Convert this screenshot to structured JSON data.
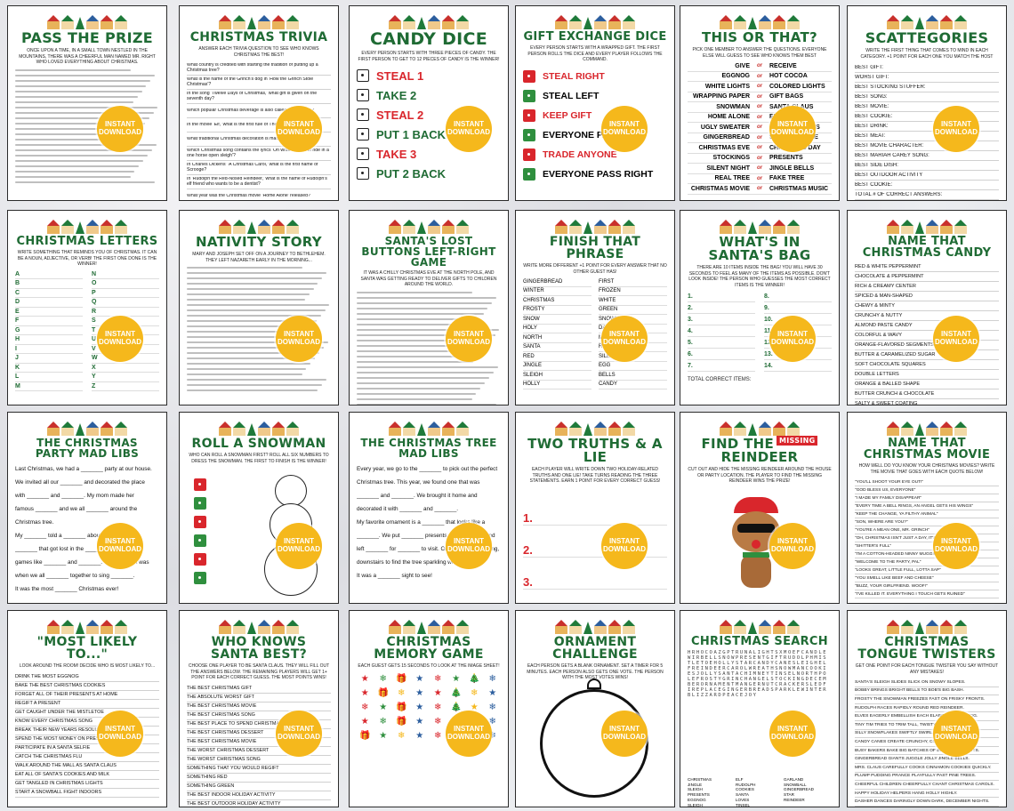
{
  "badge": {
    "line1": "INSTANT",
    "line2": "DOWNLOAD",
    "color": "#f5b81c"
  },
  "colors": {
    "title_green": "#1f6b34",
    "accent_red": "#d9262c"
  },
  "cards": [
    {
      "id": "pass-the-prize",
      "title": "PASS THE PRIZE",
      "subtitle": "Once upon a time, in a small town nestled in the mountains, there was a cheerful man named Mr. Right who loved everything about Christmas."
    },
    {
      "id": "christmas-trivia",
      "title": "CHRISTMAS TRIVIA",
      "subtitle": "ANSWER EACH TRIVIA QUESTION TO SEE WHO KNOWS CHRISTMAS THE BEST!",
      "items": [
        "What country is credited with starting the tradition of putting up a Christmas tree?",
        "What is the name of the Grinch's dog in 'How the Grinch Stole Christmas'?",
        "In the song 'Twelve Days of Christmas,' what gift is given on the seventh day?",
        "Which popular Christmas beverage is also called 'milk punch'?",
        "In the movie 'Elf,' what is the first rule of The Code of Elves?",
        "What traditional Christmas decoration is made by hanging...",
        "Which Christmas song contains the lyrics 'Oh what fun it is to ride in a one horse open sleigh'?",
        "In Charles Dickens' 'A Christmas Carol,' what is the first name of Scrooge?",
        "In 'Rudolph the Red-Nosed Reindeer,' what is the name of Rudolph's elf friend who wants to be a dentist?",
        "What year was the Christmas movie 'Home Alone' released?"
      ]
    },
    {
      "id": "candy-dice",
      "title": "CANDY DICE",
      "subtitle": "EVERY PERSON STARTS WITH THREE PIECES OF CANDY. THE FIRST PERSON TO GET TO 12 PIECES OF CANDY IS THE WINNER!",
      "rows": [
        {
          "label": "STEAL 1",
          "red": true
        },
        {
          "label": "TAKE 2",
          "red": false
        },
        {
          "label": "STEAL 2",
          "red": true
        },
        {
          "label": "PUT 1 BACK",
          "red": false
        },
        {
          "label": "TAKE 3",
          "red": true
        },
        {
          "label": "PUT 2 BACK",
          "red": false
        }
      ]
    },
    {
      "id": "gift-exchange-dice",
      "title": "GIFT EXCHANGE DICE",
      "subtitle": "EVERY PERSON STARTS WITH A WRAPPED GIFT. THE FIRST PERSON ROLLS THE DICE AND EVERY PLAYER FOLLOWS THE COMMAND.",
      "rows": [
        {
          "label": "STEAL RIGHT",
          "red": true
        },
        {
          "label": "STEAL LEFT",
          "red": false
        },
        {
          "label": "KEEP GIFT",
          "red": true
        },
        {
          "label": "EVERYONE PASS LEFT",
          "red": false
        },
        {
          "label": "TRADE ANYONE",
          "red": true
        },
        {
          "label": "EVERYONE PASS RIGHT",
          "red": false
        }
      ]
    },
    {
      "id": "this-or-that",
      "title": "THIS OR THAT?",
      "subtitle": "PICK ONE MEMBER TO ANSWER THE QUESTIONS. EVERYONE ELSE WILL GUESS TO SEE WHO KNOWS THEM BEST",
      "or": "or",
      "pairs": [
        [
          "GIVE",
          "RECEIVE"
        ],
        [
          "EGGNOG",
          "HOT COCOA"
        ],
        [
          "WHITE LIGHTS",
          "COLORED LIGHTS"
        ],
        [
          "WRAPPING PAPER",
          "GIFT BAGS"
        ],
        [
          "SNOWMAN",
          "SANTA CLAUS"
        ],
        [
          "HOME ALONE",
          "ELF"
        ],
        [
          "UGLY SWEATER",
          "CHRISTMAS PJS"
        ],
        [
          "GINGERBREAD",
          "SUGAR COOKIE"
        ],
        [
          "CHRISTMAS EVE",
          "CHRISTMAS DAY"
        ],
        [
          "STOCKINGS",
          "PRESENTS"
        ],
        [
          "SILENT NIGHT",
          "JINGLE BELLS"
        ],
        [
          "REAL TREE",
          "FAKE TREE"
        ],
        [
          "CHRISTMAS MOVIE",
          "CHRISTMAS MUSIC"
        ]
      ]
    },
    {
      "id": "scattegories",
      "title": "SCATTEGORIES",
      "subtitle": "WRITE THE FIRST THING THAT COMES TO MIND IN EACH CATEGORY. +1 POINT FOR EACH ONE YOU MATCH THE HOST",
      "items": [
        "BEST GIFT:",
        "WORST GIFT:",
        "BEST STOCKING STUFFER:",
        "BEST SONG:",
        "BEST MOVIE:",
        "BEST COOKIE:",
        "BEST DRINK:",
        "BEST MEAT:",
        "BEST MOVIE CHARACTER:",
        "BEST MARIAH CAREY SONG:",
        "BEST SIDE DISH:",
        "BEST OUTDOOR ACTIVITY",
        "BEST COOKIE:",
        "TOTAL # OF CORRECT ANSWERS:"
      ]
    },
    {
      "id": "christmas-letters",
      "title": "CHRISTMAS LETTERS",
      "subtitle": "WRITE SOMETHING THAT REMINDS YOU OF CHRISTMAS. IT CAN BE A NOUN, ADJECTIVE, OR VERB! THE FIRST ONE DONE IS THE WINNER!",
      "letters": [
        "A",
        "B",
        "C",
        "D",
        "E",
        "F",
        "G",
        "H",
        "I",
        "J",
        "K",
        "L",
        "M"
      ],
      "letters2": [
        "N",
        "O",
        "P",
        "Q",
        "R",
        "S",
        "T",
        "U",
        "V",
        "W",
        "X",
        "Y",
        "Z"
      ]
    },
    {
      "id": "nativity-story",
      "title": "NATIVITY STORY",
      "subtitle": "Mary and Joseph set off on a journey to Bethlehem. They LEFT Nazareth early in the morning..."
    },
    {
      "id": "santas-lost-buttons",
      "title": "SANTA'S LOST BUTTONS LEFT-RIGHT GAME",
      "subtitle": "It was a chilly Christmas Eve at the North Pole, and Santa was getting READY to deliver gifts to children around the world."
    },
    {
      "id": "finish-that-phrase",
      "title": "FINISH THAT PHRASE",
      "subtitle": "WRITE MORE DIFFERENT +1 POINT FOR EVERY ANSWER THAT NO OTHER GUEST HAS!",
      "left": [
        "GINGERBREAD",
        "WINTER",
        "CHRISTMAS",
        "FROSTY",
        "SNOW",
        "HOLY",
        "NORTH",
        "SANTA",
        "RED",
        "JINGLE",
        "SLEIGH",
        "HOLLY"
      ],
      "right": [
        "FIRST",
        "FROZEN",
        "WHITE",
        "GREEN",
        "SNOWY",
        "DASHING",
        "MISTLETOE",
        "RUDOLPH",
        "SILENT",
        "EGG",
        "BELLS",
        "CANDY"
      ]
    },
    {
      "id": "whats-in-santas-bag",
      "title": "WHAT'S IN SANTA'S BAG",
      "subtitle": "THERE ARE 10 ITEMS INSIDE THE BAG! YOU WILL HAVE 30 SECONDS TO FEEL AS MANY OF THE ITEMS AS POSSIBLE. DON'T LOOK INSIDE! THE PERSON WHO GUESSES THE MOST CORRECT ITEMS IS THE WINNER!",
      "left_nums": [
        "1.",
        "2.",
        "3.",
        "4.",
        "5.",
        "6.",
        "7."
      ],
      "right_nums": [
        "8.",
        "9.",
        "10.",
        "11.",
        "12.",
        "13.",
        "14."
      ],
      "footer": "TOTAL CORRECT ITEMS:"
    },
    {
      "id": "name-that-christmas-candy",
      "title": "NAME THAT CHRISTMAS CANDY",
      "items": [
        "RED & WHITE PEPPERMINT",
        "CHOCOLATE & PEPPERMINT",
        "RICH & CREAMY CENTER",
        "SPICED & MAN-SHAPED",
        "CHEWY & MINTY",
        "CRUNCHY & NUTTY",
        "ALMOND PASTE CANDY",
        "COLORFUL & WAVY",
        "ORANGE-FLAVORED SEGMENTS",
        "BUTTER & CARAMELIZED SUGAR",
        "SOFT CHOCOLATE SQUARES",
        "DOUBLE LETTERS",
        "ORANGE & BALLED SHAPE",
        "BUTTER CRUNCH & CHOCOLATE",
        "SALTY & SWEET COATING"
      ]
    },
    {
      "id": "christmas-party-mad-libs",
      "title": "THE CHRISTMAS PARTY MAD LIBS",
      "lines": [
        "Last Christmas, we had a _______ party at our house.",
        "We invited all our _______ and decorated the place",
        "with _______ and _______. My mom made her",
        "famous _______ and we all _______ around the",
        "Christmas tree.",
        "My _______ told a _______ about _______",
        "_______ that got lost in the _______. We played",
        "games like _______ and _______. The best part was",
        "when we all _______ together to sing _______.",
        "It was the most _______ Christmas ever!"
      ]
    },
    {
      "id": "roll-a-snowman",
      "title": "ROLL A SNOWMAN",
      "subtitle": "WHO CAN ROLL A SNOWMAN FIRST? ROLL ALL SIX NUMBERS TO DRESS THE SNOWMAN. THE FIRST TO FINISH IS THE WINNER!"
    },
    {
      "id": "christmas-tree-mad-libs",
      "title": "THE CHRISTMAS TREE MAD LIBS",
      "lines": [
        "Every year, we go to the _______ to pick out the perfect",
        "Christmas tree. This year, we found one that was",
        "_______ and _______. We brought it home and",
        "decorated it with _______ and _______.",
        "My favorite ornament is a _______ that looks like a",
        "_______. We put _______ presents under the tree and",
        "left _______ for _______ to visit. On Christmas morning, we rushed",
        "downstairs to find the tree sparkling with _______.",
        "It was a _______ sight to see!"
      ]
    },
    {
      "id": "two-truths-and-a-lie",
      "title": "TWO TRUTHS & A LIE",
      "subtitle": "EACH PLAYER WILL WRITE DOWN TWO HOLIDAY-RELATED TRUTHS AND ONE LIE! TAKE TURNS READING THE THREE STATEMENTS. EARN 1 POINT FOR EVERY CORRECT GUESS!",
      "nums": [
        "1.",
        "2.",
        "3."
      ]
    },
    {
      "id": "find-the-missing-reindeer",
      "title_a": "FIND THE",
      "missing": "MISSING",
      "title_b": "REINDEER",
      "subtitle": "CUT OUT AND HIDE THE MISSING REINDEER AROUND THE HOUSE OR PARTY LOCATION. THE PLAYER TO FIND THE MISSING REINDEER WINS THE PRIZE!"
    },
    {
      "id": "name-that-christmas-movie",
      "title": "NAME THAT CHRISTMAS MOVIE",
      "subtitle": "HOW WELL DO YOU KNOW YOUR CHRISTMAS MOVIES? WRITE THE MOVIE THAT GOES WITH EACH QUOTE BELOW!",
      "items": [
        "\"YOU'LL SHOOT YOUR EYE OUT!\"",
        "\"GOD BLESS US, EVERYONE\"",
        "\"I MADE MY FAMILY DISAPPEAR\"",
        "\"EVERY TIME A BELL RINGS, AN ANGEL GETS HIS WINGS\"",
        "\"KEEP THE CHANGE, YA FILTHY ANIMAL\"",
        "\"SON, WHERE ARE YOU?\"",
        "\"YOU'RE A MEAN ONE, MR. GRINCH\"",
        "\"OH, CHRISTMAS ISN'T JUST A DAY, IT'S A FRAME OF MIND\"",
        "\"SHITTER'S FULL\"",
        "\"I'M A COTTON-HEADED NINNY MUGGINS\"",
        "\"WELCOME TO THE PARTY, PAL\"",
        "\"LOOKS GREAT, LITTLE FULL, LOTTA SAP\"",
        "\"YOU SMELL LIKE BEEF AND CHEESE\"",
        "\"BUZZ, YOUR GIRLFRIEND. WOOF!\"",
        "\"I'VE KILLED IT. EVERYTHING I TOUCH GETS RUINED\""
      ]
    },
    {
      "id": "most-likely-to",
      "title": "\"MOST LIKELY TO...\"",
      "subtitle": "LOOK AROUND THE ROOM! DECIDE WHO IS MOST LIKELY TO...",
      "items": [
        "DRINK THE MOST EGGNOG",
        "BAKE THE BEST CHRISTMAS COOKIES",
        "FORGET ALL OF THEIR PRESENTS AT HOME",
        "REGIFT A PRESENT",
        "GET CAUGHT UNDER THE MISTLETOE",
        "KNOW EVERY CHRISTMAS SONG",
        "BREAK THEIR NEW YEARS RESOLUTION",
        "SPEND THE MOST MONEY ON PRESENTS",
        "PARTICIPATE IN A SANTA SELFIE",
        "CATCH THE CHRISTMAS FLU",
        "WALK AROUND THE MALL AS SANTA CLAUS",
        "EAT ALL OF SANTA'S COOKIES AND MILK",
        "GET TANGLED IN CHRISTMAS LIGHTS",
        "START A SNOWBALL FIGHT INDOORS"
      ]
    },
    {
      "id": "who-knows-santa-best",
      "title": "WHO KNOWS SANTA BEST?",
      "subtitle": "CHOOSE ONE PLAYER TO BE SANTA CLAUS. THEY WILL FILL OUT THE ANSWERS BELOW. THE REMAINING PLAYERS WILL GET 1+ POINT FOR EACH CORRECT GUESS. THE MOST POINTS WINS!",
      "items": [
        "THE BEST CHRISTMAS GIFT",
        "THE ABSOLUTE WORST GIFT",
        "THE BEST CHRISTMAS MOVIE",
        "THE BEST CHRISTMAS SONG",
        "THE BEST PLACE TO SPEND CHRISTMAS",
        "THE BEST CHRISTMAS DESSERT",
        "THE BEST CHRISTMAS MOVIE",
        "THE WORST CHRISTMAS DESSERT",
        "THE WORST CHRISTMAS SONG",
        "SOMETHING THAT YOU WOULD REGIFT",
        "SOMETHING RED",
        "SOMETHING GREEN",
        "THE BEST INDOOR HOLIDAY ACTIVITY",
        "THE BEST OUTDOOR HOLIDAY ACTIVITY"
      ]
    },
    {
      "id": "christmas-memory-game",
      "title": "CHRISTMAS MEMORY GAME",
      "subtitle": "EACH GUEST GETS 15 SECONDS TO LOOK AT THE IMAGE SHEET!"
    },
    {
      "id": "ornament-challenge",
      "title": "ORNAMENT CHALLENGE",
      "subtitle": "EACH PERSON GETS A BLANK ORNAMENT. SET A TIMER FOR 5 MINUTES. EACH PERSON ALSO GETS ONE VOTE. THE PERSON WITH THE MOST VOTES WINS!"
    },
    {
      "id": "christmas-search",
      "title": "CHRISTMAS SEARCH",
      "grid": "HRHOCOAZGPTRUNALIGHTSXMOEFCANDLEWIRBELLSNOWPRESENTGIFTRUDOLPHMISTLETOEHOLLYSTARCANDYCANESLEIGHELFREINDEERCAROLWREATHSNOWMANCOOKIESJOLLYSANTACHIMNEYTINSELNORTHPOLEFROSTYGRINCHANGELSTOCKINGDECEMBERORNAMENTMANGERNUTCRACKERSLEDFIREPLACEGINGERBREADSPARKLEWINTERBLIZZARDPEACEJOY",
      "words": [
        "CHRISTMAS",
        "ELF",
        "GARLAND",
        "JINGLE",
        "RUDOLPH",
        "SNOWBALL",
        "SLEIGH",
        "COOKIES",
        "GINGERBREAD",
        "PRESENTS",
        "SANTA",
        "STAR",
        "EGGNOG",
        "LOVES",
        "REINDEER",
        "SLEIGH",
        "TINSEL"
      ]
    },
    {
      "id": "christmas-tongue-twisters",
      "title": "CHRISTMAS TONGUE TWISTERS",
      "subtitle": "GET ONE POINT FOR EACH TONGUE TWISTER YOU SAY WITHOUT ANY MISTAKES!",
      "items": [
        "SANTA'S SLEIGH SLIDES SLICK ON SNOWY SLOPES.",
        "BOBBY BRINGS BRIGHT BELLS TO BOB'S BIG BASH.",
        "FROSTY THE SNOWMAN FREEZES FAST ON FRISKY FRONTS.",
        "RUDOLPH RACES RAPIDLY ROUND RED REINDEER.",
        "ELVES EAGERLY EMBELLISH EACH ELABORATE EGGNOG.",
        "TINY TIM TRIES TO TRIM TALL, TWISTY TREES.",
        "SILLY SNOWFLAKES SWIFTLY SWIRL.",
        "CANDY CANES CREATE CRUNCHY, COLORFUL CHEER.",
        "BUSY BAKERS BAKE BIG BATCHES OF BUTTERY BISCUITS.",
        "GINGERBREAD GIANTS JUGGLE JOLLY JINGLE BELLS.",
        "MRS. CLAUS CAREFULLY COOKS CINNAMON COOKIES QUICKLY.",
        "PLUMP PUDDING PRANCE PLAYFULLY PAST PINE TREES.",
        "CHEERFUL CHILDREN CHEERFULLY CHANT CHRISTMAS CAROLS.",
        "HAPPY HOLIDAY HELPERS HANG HOLLY HIGHLY.",
        "DASHER DANCES DARINGLY DOWN DARK, DECEMBER NIGHTS."
      ]
    }
  ]
}
